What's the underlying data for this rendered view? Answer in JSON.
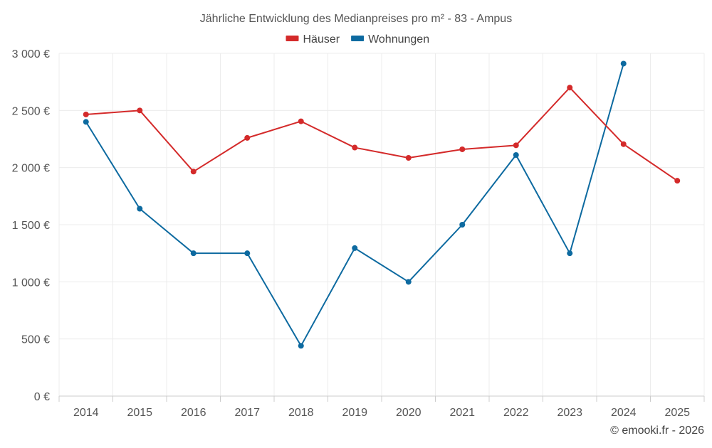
{
  "chart_data": {
    "type": "line",
    "title": "Jährliche Entwicklung des Medianpreises pro m² - 83 - Ampus",
    "xlabel": "",
    "ylabel": "",
    "categories": [
      "2014",
      "2015",
      "2016",
      "2017",
      "2018",
      "2019",
      "2020",
      "2021",
      "2022",
      "2023",
      "2024",
      "2025"
    ],
    "ylim": [
      0,
      3000
    ],
    "yticks": [
      0,
      500,
      1000,
      1500,
      2000,
      2500,
      3000
    ],
    "ytick_labels": [
      "0 €",
      "500 €",
      "1 000 €",
      "1 500 €",
      "2 000 €",
      "2 500 €",
      "3 000 €"
    ],
    "grid": true,
    "legend_position": "top-center",
    "series": [
      {
        "name": "Häuser",
        "color": "#d42a2a",
        "values": [
          2465,
          2500,
          1965,
          2260,
          2405,
          2175,
          2085,
          2160,
          2195,
          2700,
          2205,
          1885
        ]
      },
      {
        "name": "Wohnungen",
        "color": "#0d6aa0",
        "values": [
          2400,
          1640,
          1250,
          1250,
          440,
          1295,
          1000,
          1500,
          2110,
          1250,
          2910,
          null
        ]
      }
    ],
    "credit": "© emooki.fr - 2026"
  }
}
